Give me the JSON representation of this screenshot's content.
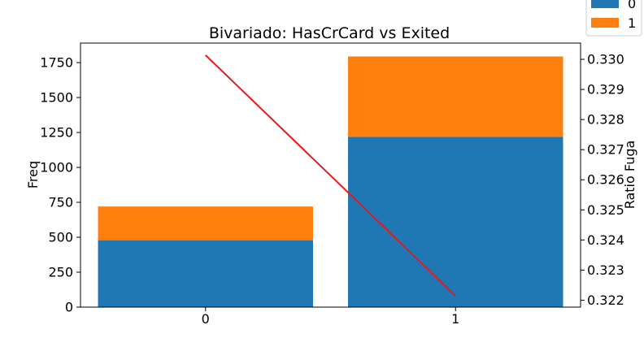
{
  "chart_data": {
    "type": "bar",
    "stacked": true,
    "title": "Bivariado: HasCrCard vs Exited",
    "categories": [
      "0",
      "1"
    ],
    "series": [
      {
        "name": "0",
        "values": [
          479,
          1219
        ],
        "color": "#1f77b4"
      },
      {
        "name": "1",
        "values": [
          241,
          575
        ],
        "color": "#ff7f0e"
      }
    ],
    "ylabel": "Freq",
    "ylim": [
      0,
      1890
    ],
    "yticks": [
      0,
      250,
      500,
      750,
      1000,
      1250,
      1500,
      1750
    ],
    "ytick_labels": [
      "0",
      "250",
      "500",
      "750",
      "1000",
      "1250",
      "1500",
      "1750"
    ],
    "secondary": {
      "type": "line",
      "name": "Ratio Fuga",
      "ylabel": "Ratio Fuga",
      "values": [
        0.33014,
        0.32214
      ],
      "ylim": [
        0.32177,
        0.33054
      ],
      "yticks": [
        0.322,
        0.323,
        0.324,
        0.325,
        0.326,
        0.327,
        0.328,
        0.329,
        0.33
      ],
      "ytick_labels": [
        "0.322",
        "0.323",
        "0.324",
        "0.325",
        "0.326",
        "0.327",
        "0.328",
        "0.329",
        "0.330"
      ],
      "color": "#e41a1c"
    },
    "legend": {
      "position": "top-right",
      "entries": [
        {
          "label": "0",
          "color": "#1f77b4"
        },
        {
          "label": "1",
          "color": "#ff7f0e"
        }
      ]
    }
  }
}
